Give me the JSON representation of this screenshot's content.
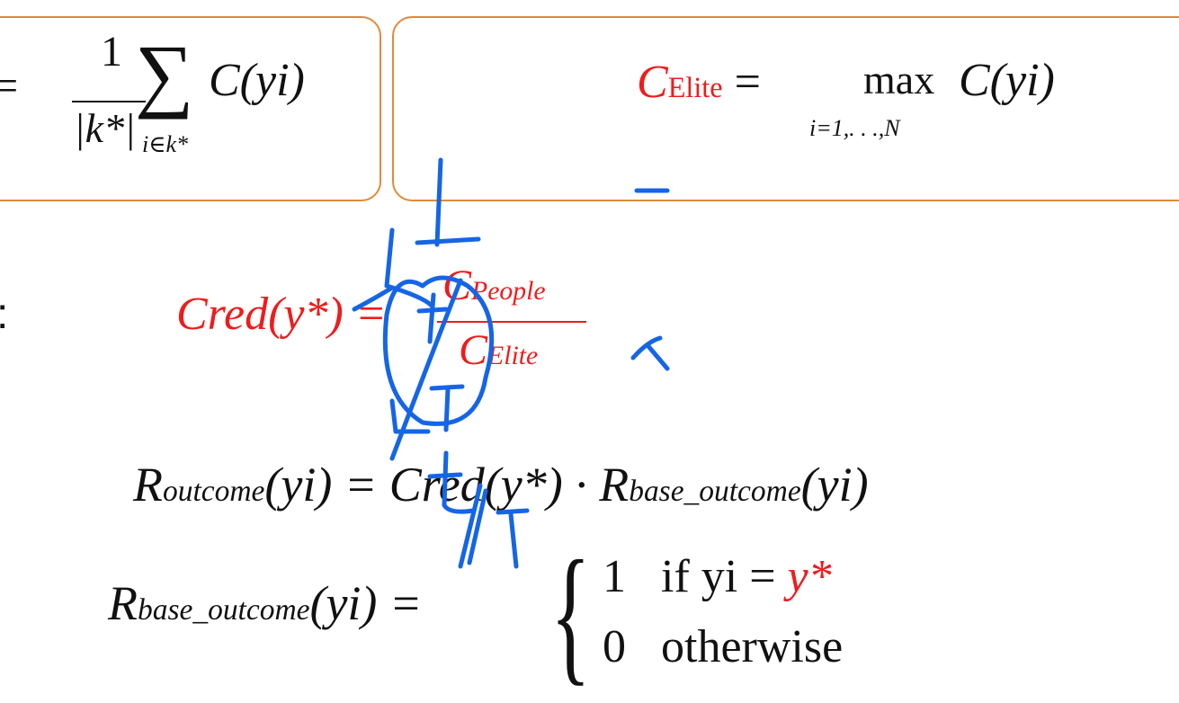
{
  "left_formula": {
    "equals": "=",
    "numerator": "1",
    "denominator": "|k*|",
    "sigma": "∑",
    "sum_subscript": "i∈k*",
    "term": "C(yi)"
  },
  "right_formula": {
    "lhs_symbol": "C",
    "lhs_subscript": "Elite",
    "equals": " = ",
    "operator": "max",
    "operator_subscript": "i=1,. . .,N",
    "term": "C(yi)"
  },
  "colon": ":",
  "cred_formula": {
    "lhs": "Cred(y*) =",
    "numerator_symbol": "C",
    "numerator_subscript": "People",
    "denominator_symbol": "C",
    "denominator_subscript": "Elite"
  },
  "outcome_formula": {
    "lhs": "R",
    "lhs_subscript": "outcome",
    "lhs_arg": "(yi) = ",
    "rhs_cred": "Cred(y*) · ",
    "rhs_R": "R",
    "rhs_subscript": "base_outcome",
    "rhs_arg": "(yi)"
  },
  "base_outcome_formula": {
    "lhs": "R",
    "lhs_subscript": "base_outcome",
    "lhs_arg": "(yi) =",
    "brace": "{",
    "case1_value": "1",
    "case1_condition": "if yi = ",
    "case1_target": "y*",
    "case2_value": "0",
    "case2_condition": "otherwise"
  },
  "colors": {
    "box_border": "#e08a3a",
    "highlight_red": "#ee1c1c",
    "ink_blue": "#1565e6"
  }
}
